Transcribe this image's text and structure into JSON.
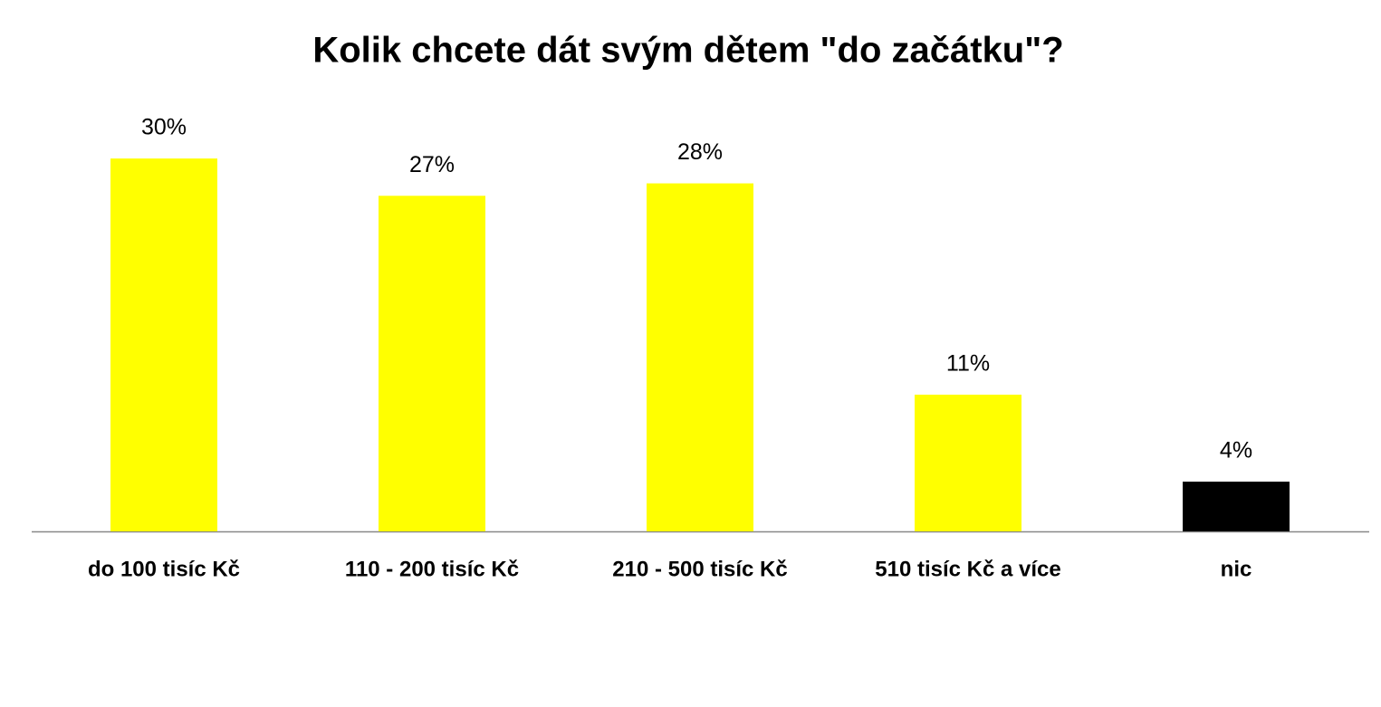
{
  "chart_data": {
    "type": "bar",
    "title": "Kolik chcete dát svým dětem \"do začátku\"?",
    "categories": [
      "do 100 tisíc Kč",
      "110 - 200 tisíc Kč",
      "210 - 500 tisíc Kč",
      "510 tisíc Kč a více",
      "nic"
    ],
    "values": [
      30,
      27,
      28,
      11,
      4
    ],
    "value_labels": [
      "30%",
      "27%",
      "28%",
      "11%",
      "4%"
    ],
    "colors": [
      "#ffff00",
      "#ffff00",
      "#ffff00",
      "#ffff00",
      "#000000"
    ]
  }
}
